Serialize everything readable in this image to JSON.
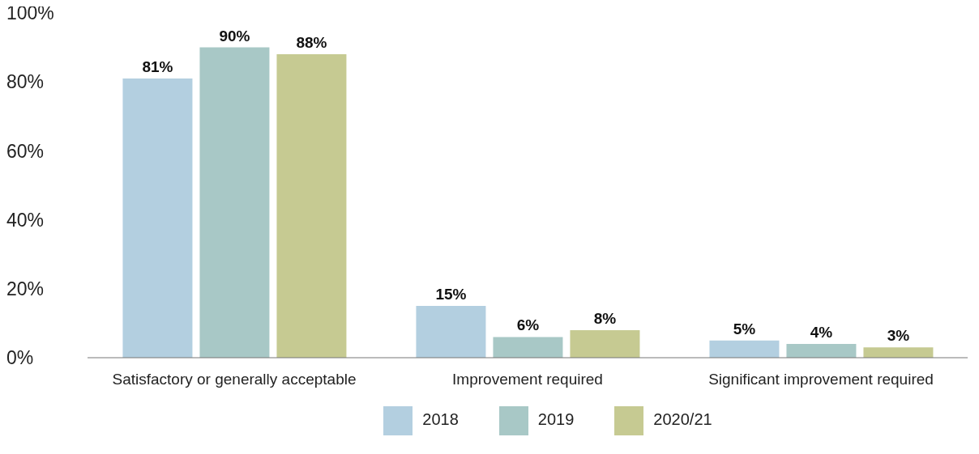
{
  "chart_data": {
    "type": "bar",
    "categories": [
      "Satisfactory or generally acceptable",
      "Improvement required",
      "Significant improvement required"
    ],
    "series": [
      {
        "name": "2018",
        "color": "#b3cfe0",
        "values": [
          81,
          15,
          5
        ],
        "value_labels": [
          "81%",
          "15%",
          "5%"
        ]
      },
      {
        "name": "2019",
        "color": "#a8c8c6",
        "values": [
          90,
          6,
          4
        ],
        "value_labels": [
          "90%",
          "6%",
          "4%"
        ]
      },
      {
        "name": "2020/21",
        "color": "#c6ca92",
        "values": [
          88,
          8,
          3
        ],
        "value_labels": [
          "88%",
          "8%",
          "3%"
        ]
      }
    ],
    "ylim": [
      0,
      100
    ],
    "yticks": [
      {
        "value": 0,
        "label": "0%"
      },
      {
        "value": 20,
        "label": "20%"
      },
      {
        "value": 40,
        "label": "40%"
      },
      {
        "value": 60,
        "label": "60%"
      },
      {
        "value": 80,
        "label": "80%"
      },
      {
        "value": 100,
        "label": "100%"
      }
    ],
    "grid": false,
    "legend": "bottom"
  }
}
